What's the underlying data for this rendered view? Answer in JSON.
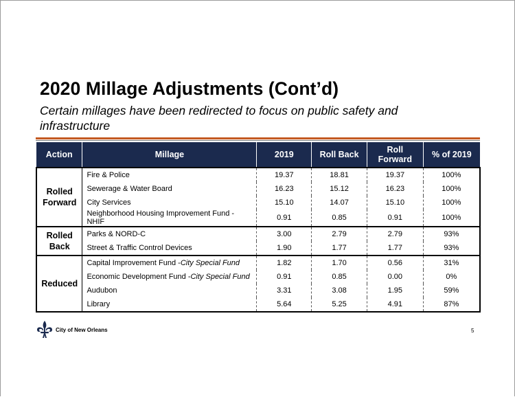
{
  "slide": {
    "title": "2020 Millage Adjustments (Cont’d)",
    "subtitle": "Certain millages have been redirected to focus on public safety and infrastructure",
    "accent_color": "#c45a22",
    "header_color": "#1b2a4e"
  },
  "table": {
    "headers": {
      "action": "Action",
      "millage": "Millage",
      "y2019": "2019",
      "roll_back": "Roll Back",
      "roll_forward_line1": "Roll",
      "roll_forward_line2": "Forward",
      "pct": "% of 2019"
    },
    "groups": [
      {
        "action_line1": "Rolled",
        "action_line2": "Forward",
        "rows": [
          {
            "millage": "Fire & Police",
            "y2019": "19.37",
            "roll_back": "18.81",
            "roll_forward": "19.37",
            "pct": "100%"
          },
          {
            "millage": "Sewerage & Water Board",
            "y2019": "16.23",
            "roll_back": "15.12",
            "roll_forward": "16.23",
            "pct": "100%"
          },
          {
            "millage": "City Services",
            "y2019": "15.10",
            "roll_back": "14.07",
            "roll_forward": "15.10",
            "pct": "100%"
          },
          {
            "millage": "Neighborhood Housing Improvement Fund - NHIF",
            "y2019": "0.91",
            "roll_back": "0.85",
            "roll_forward": "0.91",
            "pct": "100%"
          }
        ]
      },
      {
        "action_line1": "Rolled",
        "action_line2": "Back",
        "rows": [
          {
            "millage": "Parks & NORD-C",
            "y2019": "3.00",
            "roll_back": "2.79",
            "roll_forward": "2.79",
            "pct": "93%"
          },
          {
            "millage": "Street & Traffic Control Devices",
            "y2019": "1.90",
            "roll_back": "1.77",
            "roll_forward": "1.77",
            "pct": "93%"
          }
        ]
      },
      {
        "action_line1": "Reduced",
        "action_line2": "",
        "rows": [
          {
            "millage": "Capital Improvement Fund -",
            "millage_italic": "City Special Fund",
            "y2019": "1.82",
            "roll_back": "1.70",
            "roll_forward": "0.56",
            "pct": "31%"
          },
          {
            "millage": "Economic Development Fund -",
            "millage_italic": "City Special Fund",
            "y2019": "0.91",
            "roll_back": "0.85",
            "roll_forward": "0.00",
            "pct": "0%"
          },
          {
            "millage": "Audubon",
            "y2019": "3.31",
            "roll_back": "3.08",
            "roll_forward": "1.95",
            "pct": "59%"
          },
          {
            "millage": "Library",
            "y2019": "5.64",
            "roll_back": "5.25",
            "roll_forward": "4.91",
            "pct": "87%"
          }
        ]
      }
    ]
  },
  "footer": {
    "org_name": "City of New Orleans",
    "logo_icon": "fleur-de-lis-icon",
    "page_number": "5"
  }
}
